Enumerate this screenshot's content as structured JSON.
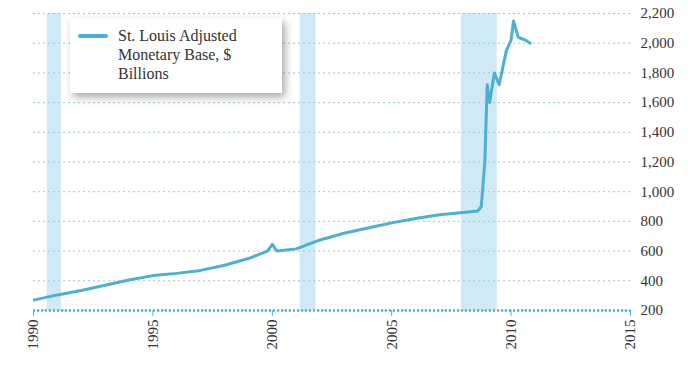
{
  "chart_data": {
    "type": "line",
    "x": [
      1990.0,
      1991.0,
      1992.0,
      1993.0,
      1994.0,
      1995.0,
      1996.0,
      1997.0,
      1998.0,
      1999.0,
      1999.8,
      2000.0,
      2000.2,
      2001.0,
      2002.0,
      2003.0,
      2004.0,
      2005.0,
      2006.0,
      2007.0,
      2008.0,
      2008.6,
      2008.75,
      2008.9,
      2009.0,
      2009.1,
      2009.3,
      2009.5,
      2009.8,
      2010.0,
      2010.1,
      2010.3,
      2010.6,
      2010.8
    ],
    "series": [
      {
        "name": "St. Louis Adjusted Monetary Base, $ Billions",
        "color": "#4bb0d4",
        "values": [
          270,
          305,
          335,
          370,
          405,
          435,
          450,
          470,
          505,
          550,
          600,
          645,
          600,
          615,
          675,
          720,
          755,
          790,
          820,
          845,
          860,
          870,
          900,
          1200,
          1720,
          1600,
          1800,
          1720,
          1950,
          2020,
          2150,
          2040,
          2020,
          2000
        ]
      }
    ],
    "shaded_x_ranges": [
      [
        1990.58,
        1991.17
      ],
      [
        2001.17,
        2001.83
      ],
      [
        2007.92,
        2009.42
      ]
    ],
    "xlim": [
      1990,
      2015
    ],
    "xticks": [
      1990,
      1995,
      2000,
      2005,
      2010,
      2015
    ],
    "ylim": [
      200,
      2200
    ],
    "yticks": [
      200,
      400,
      600,
      800,
      {
        "value": 1000,
        "label": "1,000"
      },
      {
        "value": 1200,
        "label": "1,200"
      },
      {
        "value": 1400,
        "label": "1,400"
      },
      {
        "value": 1600,
        "label": "1,600"
      },
      {
        "value": 1800,
        "label": "1,800"
      },
      {
        "value": 2000,
        "label": "2,000"
      },
      {
        "value": 2200,
        "label": "2,200"
      }
    ],
    "grid": true,
    "legend": "top-left"
  }
}
